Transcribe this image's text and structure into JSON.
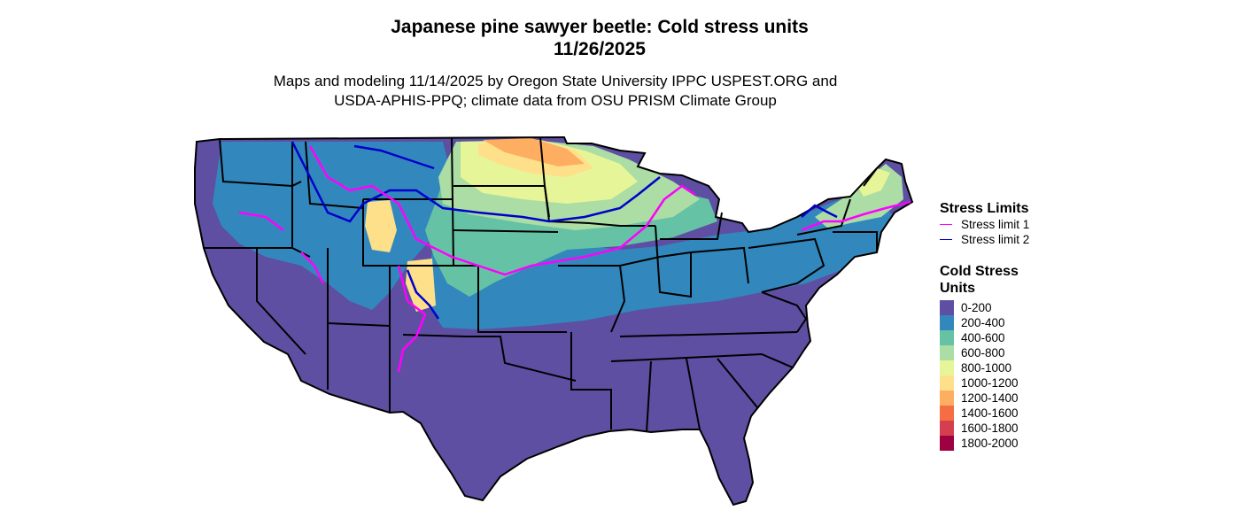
{
  "title_line1": "Japanese pine sawyer beetle: Cold stress units",
  "title_line2": "11/26/2025",
  "subtitle_line1": "Maps and modeling 11/14/2025 by Oregon State University IPPC USPEST.ORG and",
  "subtitle_line2": "USDA-APHIS-PPQ; climate data from OSU PRISM Climate Group",
  "legend_limits": {
    "title": "Stress Limits",
    "items": [
      {
        "label": "Stress limit 1",
        "color": "#ff00ff"
      },
      {
        "label": "Stress limit 2",
        "color": "#0000cc"
      }
    ]
  },
  "legend_units": {
    "title_line1": "Cold Stress",
    "title_line2": "Units",
    "items": [
      {
        "label": "0-200",
        "color": "#5e4fa2"
      },
      {
        "label": "200-400",
        "color": "#3288bd"
      },
      {
        "label": "400-600",
        "color": "#66c2a5"
      },
      {
        "label": "600-800",
        "color": "#abdda4"
      },
      {
        "label": "800-1000",
        "color": "#e6f598"
      },
      {
        "label": "1000-1200",
        "color": "#fee08b"
      },
      {
        "label": "1200-1400",
        "color": "#fdae61"
      },
      {
        "label": "1400-1600",
        "color": "#f46d43"
      },
      {
        "label": "1600-1800",
        "color": "#d53e4f"
      },
      {
        "label": "1800-2000",
        "color": "#9e0142"
      }
    ]
  }
}
